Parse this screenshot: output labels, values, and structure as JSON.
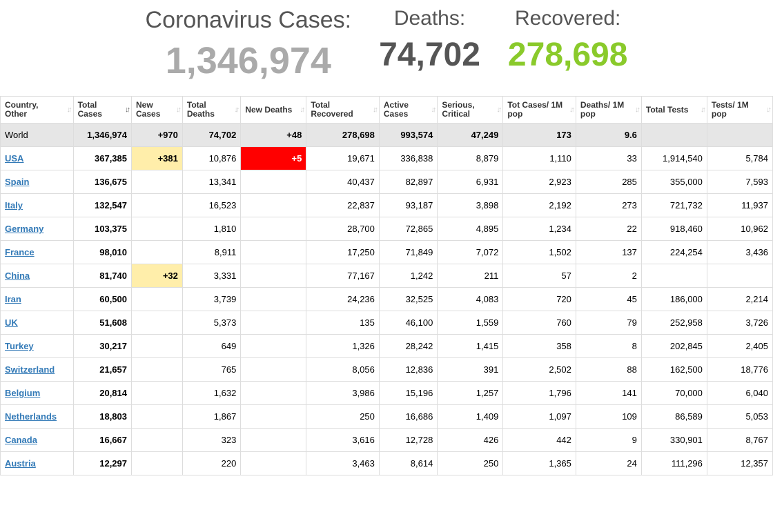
{
  "header": {
    "cases_label": "Coronavirus Cases:",
    "cases_value": "1,346,974",
    "deaths_label": "Deaths:",
    "deaths_value": "74,702",
    "recovered_label": "Recovered:",
    "recovered_value": "278,698"
  },
  "colors": {
    "cases_value": "#aaaaaa",
    "deaths_value": "#555555",
    "recovered_value": "#8ACA2B",
    "link": "#337ab7",
    "border": "#dddddd",
    "world_row_bg": "#e6e6e6",
    "highlight_yellow": "#FFEEAA",
    "highlight_red": "#FF0000"
  },
  "table": {
    "columns": [
      "Country, Other",
      "Total Cases",
      "New Cases",
      "Total Deaths",
      "New Deaths",
      "Total Recovered",
      "Active Cases",
      "Serious, Critical",
      "Tot Cases/ 1M pop",
      "Deaths/ 1M pop",
      "Total Tests",
      "Tests/ 1M pop"
    ],
    "sorted_column_index": 1,
    "world_row": {
      "country": "World",
      "cells": [
        "1,346,974",
        "+970",
        "74,702",
        "+48",
        "278,698",
        "993,574",
        "47,249",
        "173",
        "9.6",
        "",
        ""
      ]
    },
    "rows": [
      {
        "country": "USA",
        "link": true,
        "cells": [
          "367,385",
          "+381",
          "10,876",
          "+5",
          "19,671",
          "336,838",
          "8,879",
          "1,110",
          "33",
          "1,914,540",
          "5,784"
        ],
        "hl": {
          "1": "yellow",
          "3": "red"
        }
      },
      {
        "country": "Spain",
        "link": true,
        "cells": [
          "136,675",
          "",
          "13,341",
          "",
          "40,437",
          "82,897",
          "6,931",
          "2,923",
          "285",
          "355,000",
          "7,593"
        ]
      },
      {
        "country": "Italy",
        "link": true,
        "cells": [
          "132,547",
          "",
          "16,523",
          "",
          "22,837",
          "93,187",
          "3,898",
          "2,192",
          "273",
          "721,732",
          "11,937"
        ]
      },
      {
        "country": "Germany",
        "link": true,
        "cells": [
          "103,375",
          "",
          "1,810",
          "",
          "28,700",
          "72,865",
          "4,895",
          "1,234",
          "22",
          "918,460",
          "10,962"
        ]
      },
      {
        "country": "France",
        "link": true,
        "cells": [
          "98,010",
          "",
          "8,911",
          "",
          "17,250",
          "71,849",
          "7,072",
          "1,502",
          "137",
          "224,254",
          "3,436"
        ]
      },
      {
        "country": "China",
        "link": true,
        "cells": [
          "81,740",
          "+32",
          "3,331",
          "",
          "77,167",
          "1,242",
          "211",
          "57",
          "2",
          "",
          ""
        ],
        "hl": {
          "1": "yellow"
        }
      },
      {
        "country": "Iran",
        "link": true,
        "cells": [
          "60,500",
          "",
          "3,739",
          "",
          "24,236",
          "32,525",
          "4,083",
          "720",
          "45",
          "186,000",
          "2,214"
        ]
      },
      {
        "country": "UK",
        "link": true,
        "cells": [
          "51,608",
          "",
          "5,373",
          "",
          "135",
          "46,100",
          "1,559",
          "760",
          "79",
          "252,958",
          "3,726"
        ]
      },
      {
        "country": "Turkey",
        "link": true,
        "cells": [
          "30,217",
          "",
          "649",
          "",
          "1,326",
          "28,242",
          "1,415",
          "358",
          "8",
          "202,845",
          "2,405"
        ]
      },
      {
        "country": "Switzerland",
        "link": true,
        "cells": [
          "21,657",
          "",
          "765",
          "",
          "8,056",
          "12,836",
          "391",
          "2,502",
          "88",
          "162,500",
          "18,776"
        ]
      },
      {
        "country": "Belgium",
        "link": true,
        "cells": [
          "20,814",
          "",
          "1,632",
          "",
          "3,986",
          "15,196",
          "1,257",
          "1,796",
          "141",
          "70,000",
          "6,040"
        ]
      },
      {
        "country": "Netherlands",
        "link": true,
        "cells": [
          "18,803",
          "",
          "1,867",
          "",
          "250",
          "16,686",
          "1,409",
          "1,097",
          "109",
          "86,589",
          "5,053"
        ]
      },
      {
        "country": "Canada",
        "link": true,
        "cells": [
          "16,667",
          "",
          "323",
          "",
          "3,616",
          "12,728",
          "426",
          "442",
          "9",
          "330,901",
          "8,767"
        ]
      },
      {
        "country": "Austria",
        "link": true,
        "cells": [
          "12,297",
          "",
          "220",
          "",
          "3,463",
          "8,614",
          "250",
          "1,365",
          "24",
          "111,296",
          "12,357"
        ]
      }
    ]
  }
}
